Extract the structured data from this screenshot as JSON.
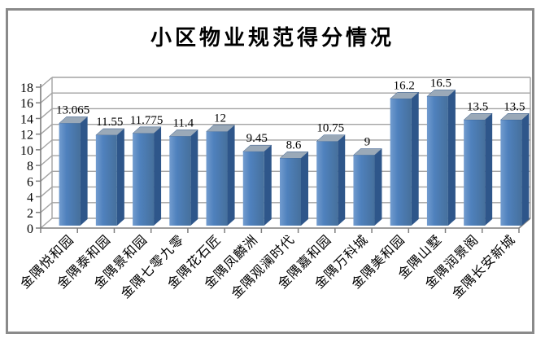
{
  "chart_data": {
    "type": "bar",
    "variant": "3d-column",
    "title": "小区物业规范得分情况",
    "categories": [
      "金隅悦和园",
      "金隅泰和园",
      "金隅景和园",
      "金隅七零九零",
      "金隅花石匠",
      "金隅凤麟洲",
      "金隅观澜时代",
      "金隅嘉和园",
      "金隅万科城",
      "金隅美和园",
      "金隅山墅",
      "金隅润景阁",
      "金隅长安新城"
    ],
    "values": [
      13.065,
      11.55,
      11.775,
      11.4,
      12,
      9.45,
      8.6,
      10.75,
      9,
      16.2,
      16.5,
      13.5,
      13.5
    ],
    "value_labels": [
      "13.065",
      "11.55",
      "11.775",
      "11.4",
      "12",
      "9.45",
      "8.6",
      "10.75",
      "9",
      "16.2",
      "16.5",
      "13.5",
      "13.5"
    ],
    "xlabel": "",
    "ylabel": "",
    "ylim": [
      0,
      18
    ],
    "ytick_step": 2,
    "yticks": [
      0,
      2,
      4,
      6,
      8,
      10,
      12,
      14,
      16,
      18
    ],
    "grid": true,
    "legend_position": "none",
    "colors": {
      "bar_front": "#4f81bd",
      "bar_front_light": "#729ccf",
      "bar_front_dark": "#46709c",
      "bar_side": "#2e568a",
      "bar_top": "#9aa9b8",
      "gridline": "#a3a3a3",
      "axis": "#7f7f7f",
      "chart_border": "#8a8a8a",
      "background": "#ffffff",
      "text": "#000000"
    }
  }
}
